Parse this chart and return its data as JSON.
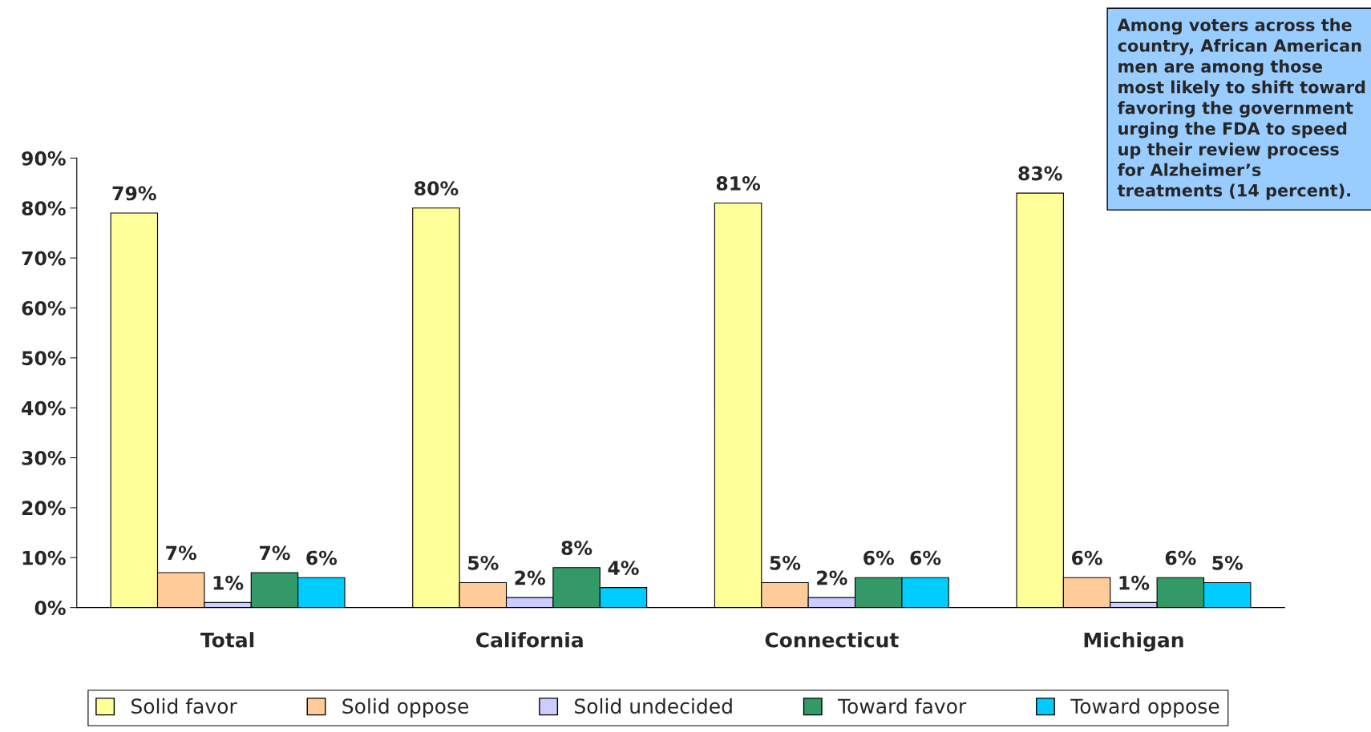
{
  "chart_data": {
    "type": "bar",
    "categories": [
      "Total",
      "California",
      "Connecticut",
      "Michigan"
    ],
    "series": [
      {
        "name": "Solid favor",
        "color": "#ffff99",
        "values": [
          79,
          80,
          81,
          83
        ],
        "value_labels": [
          "79%",
          "80%",
          "81%",
          "83%"
        ]
      },
      {
        "name": "Solid oppose",
        "color": "#ffcc99",
        "values": [
          7,
          5,
          5,
          6
        ],
        "value_labels": [
          "7%",
          "5%",
          "5%",
          "6%"
        ]
      },
      {
        "name": "Solid undecided",
        "color": "#ccccff",
        "values": [
          1,
          2,
          2,
          1
        ],
        "value_labels": [
          "1%",
          "2%",
          "2%",
          "1%"
        ]
      },
      {
        "name": "Toward favor",
        "color": "#339966",
        "values": [
          7,
          8,
          6,
          6
        ],
        "value_labels": [
          "7%",
          "8%",
          "6%",
          "6%"
        ]
      },
      {
        "name": "Toward oppose",
        "color": "#00ccff",
        "values": [
          6,
          4,
          6,
          5
        ],
        "value_labels": [
          "6%",
          "4%",
          "6%",
          "5%"
        ]
      }
    ],
    "ylim": [
      0,
      90
    ],
    "yticks": [
      {
        "value": 0,
        "label": "0%"
      },
      {
        "value": 10,
        "label": "10%"
      },
      {
        "value": 20,
        "label": "20%"
      },
      {
        "value": 30,
        "label": "30%"
      },
      {
        "value": 40,
        "label": "40%"
      },
      {
        "value": 50,
        "label": "50%"
      },
      {
        "value": 60,
        "label": "60%"
      },
      {
        "value": 70,
        "label": "70%"
      },
      {
        "value": 80,
        "label": "80%"
      },
      {
        "value": 90,
        "label": "90%"
      }
    ],
    "grid": false,
    "legend": "bottom",
    "annotations": [
      "Among voters across the country, African American men are among those most likely to shift toward favoring the government urging the FDA to speed up their review process for Alzheimer’s treatments (14 percent)."
    ]
  }
}
